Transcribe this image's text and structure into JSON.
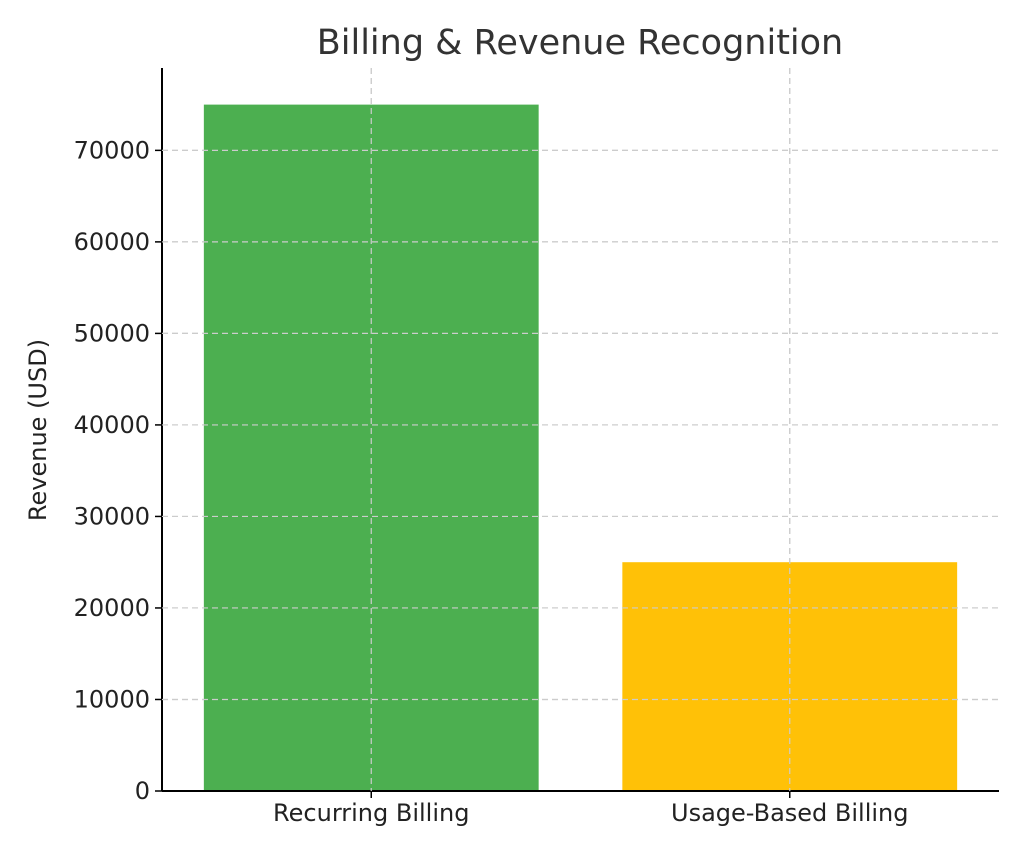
{
  "chart_data": {
    "type": "bar",
    "title": "Billing & Revenue Recognition",
    "xlabel": "",
    "ylabel": "Revenue (USD)",
    "categories": [
      "Recurring Billing",
      "Usage-Based Billing"
    ],
    "values": [
      75000,
      25000
    ],
    "colors": [
      "#4caf50",
      "#ffc107"
    ],
    "ylim": [
      0,
      79000
    ],
    "yticks": [
      0,
      10000,
      20000,
      30000,
      40000,
      50000,
      60000,
      70000
    ],
    "grid": true
  }
}
